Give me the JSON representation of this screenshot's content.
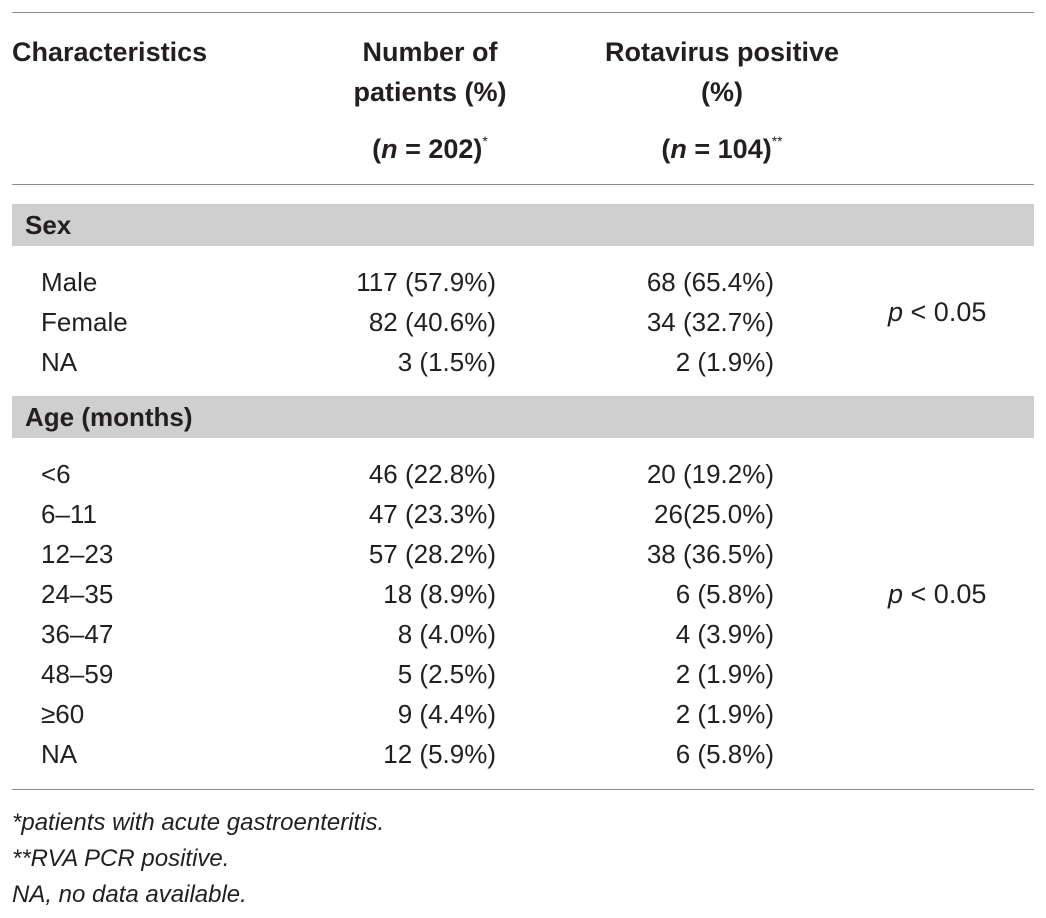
{
  "header": {
    "col1": "Characteristics",
    "col2_line1": "Number of",
    "col2_line2": "patients (%)",
    "col2_n_letter": "n",
    "col2_n_rest": " = 202)",
    "col2_sup": "*",
    "col3_line1": "Rotavirus positive",
    "col3_line2": "(%)",
    "col3_n_letter": "n",
    "col3_n_rest": " = 104)",
    "col3_sup": "**",
    "open_paren": "("
  },
  "sex": {
    "label": "Sex",
    "p_letter": "p",
    "p_rest": " < 0.05",
    "rows": [
      {
        "label": "Male",
        "patients": "117 (57.9%)",
        "positive": "68 (65.4%)"
      },
      {
        "label": "Female",
        "patients": "82 (40.6%)",
        "positive": "34 (32.7%)"
      },
      {
        "label": "NA",
        "patients": "3 (1.5%)",
        "positive": "2 (1.9%)"
      }
    ]
  },
  "age": {
    "label": "Age (months)",
    "p_letter": "p",
    "p_rest": " < 0.05",
    "rows": [
      {
        "label": "<6",
        "patients": "46 (22.8%)",
        "positive": "20 (19.2%)"
      },
      {
        "label": "6–11",
        "patients": "47 (23.3%)",
        "positive": "26(25.0%)"
      },
      {
        "label": "12–23",
        "patients": "57 (28.2%)",
        "positive": "38 (36.5%)"
      },
      {
        "label": "24–35",
        "patients": "18 (8.9%)",
        "positive": "6 (5.8%)"
      },
      {
        "label": "36–47",
        "patients": "8 (4.0%)",
        "positive": "4 (3.9%)"
      },
      {
        "label": "48–59",
        "patients": "5 (2.5%)",
        "positive": "2 (1.9%)"
      },
      {
        "label": "≥60",
        "patients": "9 (4.4%)",
        "positive": "2 (1.9%)"
      },
      {
        "label": "NA",
        "patients": "12 (5.9%)",
        "positive": "6 (5.8%)"
      }
    ]
  },
  "footnotes": [
    "*patients with acute gastroenteritis.",
    "**RVA PCR positive.",
    "NA, no data available."
  ]
}
